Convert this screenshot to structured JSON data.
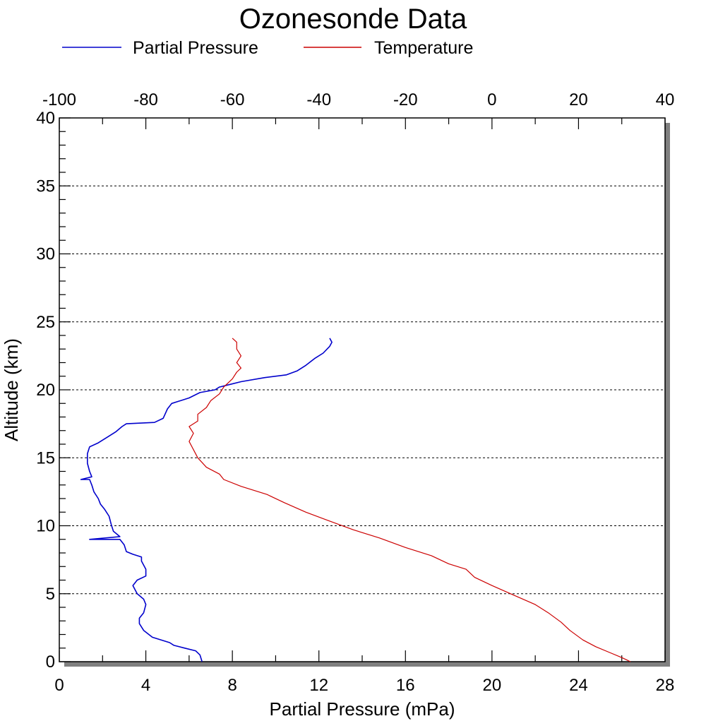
{
  "chart_data": {
    "type": "line",
    "title": "Ozonesonde Data",
    "ylabel": "Altitude (km)",
    "xlabel": "Partial Pressure (mPa)",
    "ylim": [
      0,
      40
    ],
    "yticks": [
      "0",
      "5",
      "10",
      "15",
      "20",
      "25",
      "30",
      "35",
      "40"
    ],
    "x_bottom": {
      "range": [
        0,
        28
      ],
      "ticks": [
        "0",
        "4",
        "8",
        "12",
        "16",
        "20",
        "24",
        "28"
      ]
    },
    "x_top": {
      "range": [
        -100,
        40
      ],
      "ticks": [
        "-100",
        "-80",
        "-60",
        "-40",
        "-20",
        "0",
        "20",
        "40"
      ]
    },
    "grid": "horizontal dotted",
    "legend_position": "top",
    "series": [
      {
        "name": "Partial Pressure",
        "color": "#0000cc",
        "axis": "bottom",
        "points": [
          [
            6.6,
            0.0
          ],
          [
            6.5,
            0.5
          ],
          [
            6.3,
            0.8
          ],
          [
            5.8,
            1.0
          ],
          [
            5.3,
            1.2
          ],
          [
            5.1,
            1.4
          ],
          [
            4.3,
            1.8
          ],
          [
            3.9,
            2.3
          ],
          [
            3.7,
            2.8
          ],
          [
            3.7,
            3.2
          ],
          [
            3.9,
            3.6
          ],
          [
            4.0,
            4.2
          ],
          [
            3.9,
            4.6
          ],
          [
            3.6,
            5.0
          ],
          [
            3.4,
            5.6
          ],
          [
            3.6,
            6.0
          ],
          [
            4.0,
            6.3
          ],
          [
            4.0,
            6.8
          ],
          [
            3.8,
            7.4
          ],
          [
            3.8,
            7.7
          ],
          [
            3.4,
            7.9
          ],
          [
            3.1,
            8.1
          ],
          [
            3.0,
            8.6
          ],
          [
            2.8,
            9.0
          ],
          [
            1.4,
            9.0
          ],
          [
            2.8,
            9.2
          ],
          [
            2.5,
            9.6
          ],
          [
            2.4,
            10.1
          ],
          [
            2.3,
            10.7
          ],
          [
            2.1,
            11.2
          ],
          [
            1.9,
            11.6
          ],
          [
            1.8,
            12.0
          ],
          [
            1.6,
            12.5
          ],
          [
            1.5,
            13.0
          ],
          [
            1.4,
            13.4
          ],
          [
            1.0,
            13.4
          ],
          [
            1.5,
            13.6
          ],
          [
            1.4,
            14.0
          ],
          [
            1.3,
            14.6
          ],
          [
            1.3,
            15.3
          ],
          [
            1.4,
            15.8
          ],
          [
            1.8,
            16.1
          ],
          [
            2.2,
            16.5
          ],
          [
            2.6,
            16.9
          ],
          [
            2.9,
            17.3
          ],
          [
            3.1,
            17.5
          ],
          [
            4.4,
            17.6
          ],
          [
            4.8,
            17.9
          ],
          [
            5.0,
            18.6
          ],
          [
            5.2,
            19.0
          ],
          [
            6.0,
            19.4
          ],
          [
            6.5,
            19.8
          ],
          [
            7.2,
            20.0
          ],
          [
            7.4,
            20.2
          ],
          [
            7.9,
            20.4
          ],
          [
            8.4,
            20.6
          ],
          [
            9.5,
            20.9
          ],
          [
            10.5,
            21.1
          ],
          [
            11.0,
            21.4
          ],
          [
            11.4,
            21.8
          ],
          [
            11.8,
            22.3
          ],
          [
            12.2,
            22.7
          ],
          [
            12.5,
            23.2
          ],
          [
            12.6,
            23.5
          ],
          [
            12.5,
            23.8
          ]
        ]
      },
      {
        "name": "Temperature",
        "color": "#cc0000",
        "axis": "top",
        "points": [
          [
            32.0,
            0.0
          ],
          [
            30.0,
            0.3
          ],
          [
            27.0,
            0.7
          ],
          [
            24.0,
            1.1
          ],
          [
            21.0,
            1.6
          ],
          [
            18.0,
            2.3
          ],
          [
            16.0,
            2.9
          ],
          [
            13.0,
            3.6
          ],
          [
            10.0,
            4.2
          ],
          [
            5.0,
            4.9
          ],
          [
            0.0,
            5.6
          ],
          [
            -4.0,
            6.2
          ],
          [
            -6.0,
            6.8
          ],
          [
            -10.0,
            7.2
          ],
          [
            -14.0,
            7.8
          ],
          [
            -20.0,
            8.4
          ],
          [
            -26.0,
            9.1
          ],
          [
            -32.0,
            9.7
          ],
          [
            -38.0,
            10.4
          ],
          [
            -43.0,
            11.0
          ],
          [
            -48.0,
            11.7
          ],
          [
            -52.0,
            12.3
          ],
          [
            -58.0,
            12.9
          ],
          [
            -62.0,
            13.4
          ],
          [
            -63.0,
            13.8
          ],
          [
            -66.0,
            14.3
          ],
          [
            -68.0,
            15.0
          ],
          [
            -69.0,
            15.6
          ],
          [
            -70.0,
            16.2
          ],
          [
            -69.0,
            16.8
          ],
          [
            -70.0,
            17.3
          ],
          [
            -68.0,
            17.7
          ],
          [
            -68.0,
            18.2
          ],
          [
            -66.0,
            18.7
          ],
          [
            -65.0,
            19.2
          ],
          [
            -63.0,
            19.7
          ],
          [
            -62.0,
            20.2
          ],
          [
            -60.0,
            20.8
          ],
          [
            -59.0,
            21.3
          ],
          [
            -58.0,
            21.6
          ],
          [
            -59.0,
            22.0
          ],
          [
            -58.0,
            22.5
          ],
          [
            -59.0,
            23.0
          ],
          [
            -59.0,
            23.5
          ],
          [
            -60.0,
            23.8
          ]
        ]
      }
    ]
  }
}
